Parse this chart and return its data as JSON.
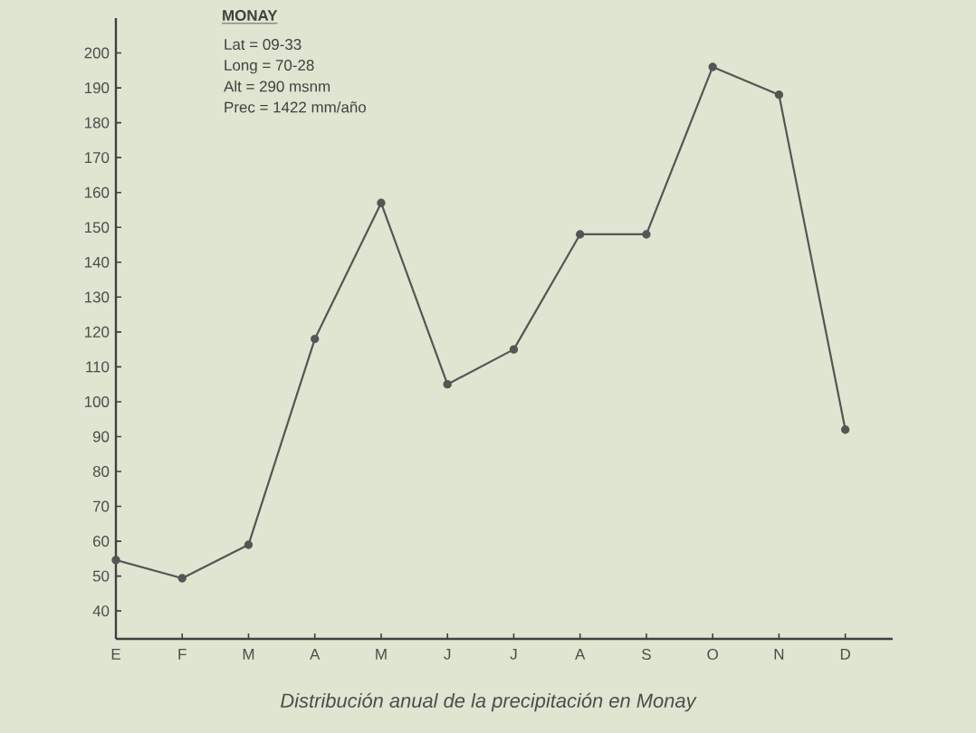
{
  "chart_data": {
    "type": "line",
    "title": "MONAY",
    "annotations": [
      "Lat = 09-33",
      "Long = 70-28",
      "Alt = 290 msnm",
      "Prec = 1422 mm/año",
      "Distribución anual de la precipitación en Monay"
    ],
    "categories": [
      "E",
      "F",
      "M",
      "A",
      "M",
      "J",
      "J",
      "A",
      "S",
      "O",
      "N",
      "D"
    ],
    "series": [
      {
        "color": "#555555",
        "values": [
          54.6,
          49.4,
          59,
          118,
          157,
          105,
          115,
          148,
          148,
          196,
          188,
          92
        ]
      }
    ],
    "ylim": [
      32,
      210
    ],
    "yticks": [
      40,
      50,
      60,
      70,
      80,
      90,
      100,
      110,
      120,
      130,
      140,
      150,
      160,
      170,
      180,
      190,
      200
    ],
    "marker": "circle",
    "line_style": "solid"
  }
}
